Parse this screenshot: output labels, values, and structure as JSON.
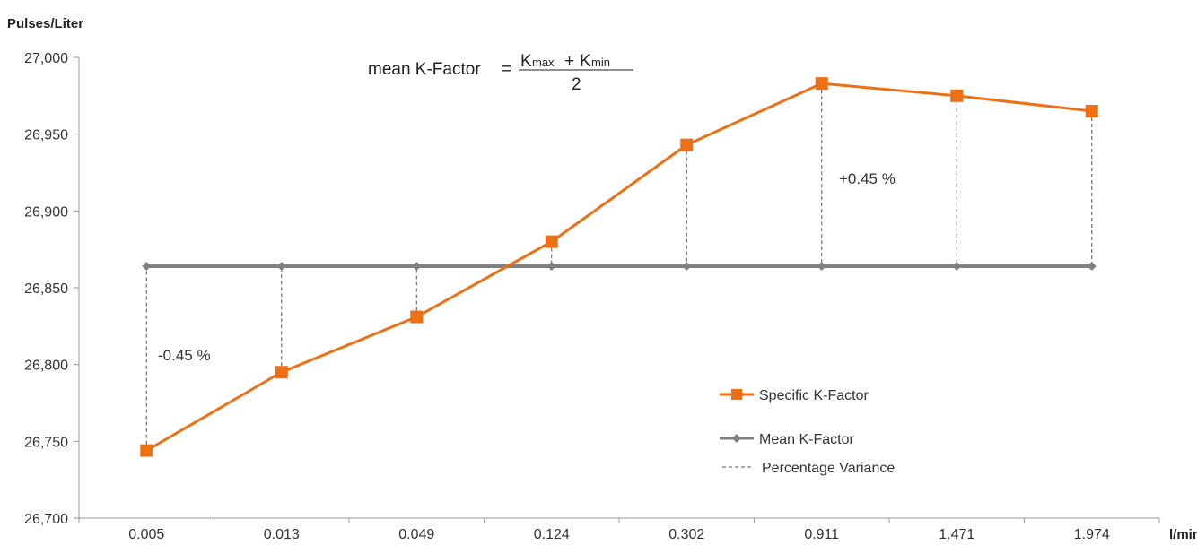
{
  "chart_data": {
    "type": "line",
    "ylabel": "Pulses/Liter",
    "xlabel": "l/min",
    "categories": [
      "0.005",
      "0.013",
      "0.049",
      "0.124",
      "0.302",
      "0.911",
      "1.471",
      "1.974"
    ],
    "ylim": [
      26700,
      27000
    ],
    "yticks": [
      26700,
      26750,
      26800,
      26850,
      26900,
      26950,
      27000
    ],
    "ytick_labels": [
      "26,700",
      "26,750",
      "26,800",
      "26,850",
      "26,900",
      "26,950",
      "27,000"
    ],
    "series": [
      {
        "name": "Specific K-Factor",
        "color": "#ED7015",
        "marker": "square",
        "values": [
          26744,
          26795,
          26831,
          26880,
          26943,
          26983,
          26975,
          26965
        ]
      },
      {
        "name": "Mean K-Factor",
        "color": "#808080",
        "marker": "diamond",
        "values": [
          26864,
          26864,
          26864,
          26864,
          26864,
          26864,
          26864,
          26864
        ]
      }
    ],
    "variance_label": "Percentage Variance",
    "annotations": {
      "minus": "-0.45 %",
      "plus": "+0.45 %"
    },
    "formula": {
      "lhs": "mean K-Factor",
      "equals": "=",
      "k1": "K",
      "k1_sub": "max",
      "plus": "+",
      "k2": "K",
      "k2_sub": "min",
      "denominator": "2"
    },
    "grid": false,
    "legend_position": "bottom-right"
  }
}
